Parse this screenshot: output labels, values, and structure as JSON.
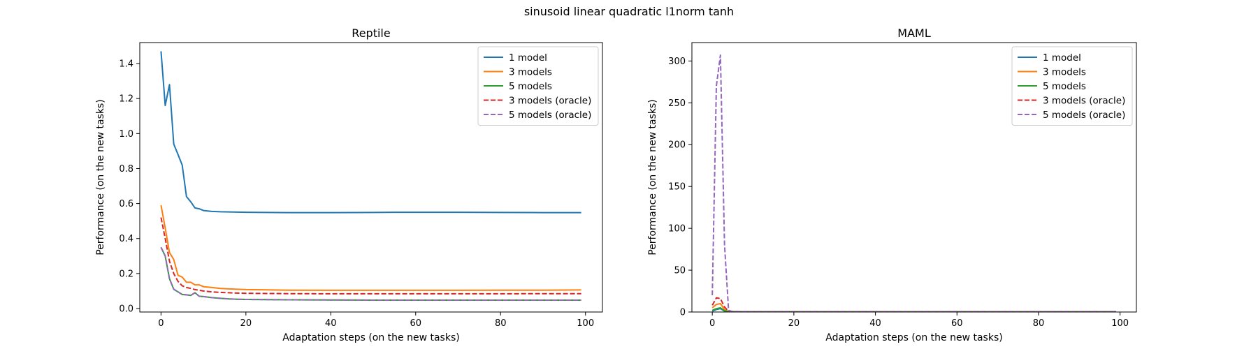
{
  "figure": {
    "suptitle": "sinusoid linear quadratic l1norm tanh"
  },
  "chart_data": [
    {
      "type": "line",
      "title": "Reptile",
      "xlabel": "Adaptation steps (on the new tasks)",
      "ylabel": "Performance (on the new tasks)",
      "xlim": [
        -5,
        104
      ],
      "ylim": [
        -0.02,
        1.52
      ],
      "xticks": [
        0,
        20,
        40,
        60,
        80,
        100
      ],
      "yticks": [
        0.0,
        0.2,
        0.4,
        0.6,
        0.8,
        1.0,
        1.2,
        1.4
      ],
      "ytick_labels": [
        "0.0",
        "0.2",
        "0.4",
        "0.6",
        "0.8",
        "1.0",
        "1.2",
        "1.4"
      ],
      "legend_position": "top-right",
      "series": [
        {
          "name": "1 model",
          "color": "#1f77b4",
          "dash": "solid",
          "points": [
            [
              0,
              1.47
            ],
            [
              1,
              1.16
            ],
            [
              2,
              1.28
            ],
            [
              3,
              0.94
            ],
            [
              4,
              0.88
            ],
            [
              5,
              0.82
            ],
            [
              6,
              0.64
            ],
            [
              7,
              0.61
            ],
            [
              8,
              0.575
            ],
            [
              9,
              0.57
            ],
            [
              10,
              0.56
            ],
            [
              12,
              0.555
            ],
            [
              14,
              0.553
            ],
            [
              16,
              0.552
            ],
            [
              18,
              0.551
            ],
            [
              20,
              0.55
            ],
            [
              25,
              0.549
            ],
            [
              30,
              0.548
            ],
            [
              40,
              0.548
            ],
            [
              50,
              0.549
            ],
            [
              55,
              0.55
            ],
            [
              60,
              0.55
            ],
            [
              70,
              0.55
            ],
            [
              80,
              0.549
            ],
            [
              90,
              0.548
            ],
            [
              99,
              0.548
            ]
          ]
        },
        {
          "name": "3 models",
          "color": "#ff7f0e",
          "dash": "solid",
          "points": [
            [
              0,
              0.59
            ],
            [
              1,
              0.46
            ],
            [
              2,
              0.32
            ],
            [
              3,
              0.28
            ],
            [
              4,
              0.19
            ],
            [
              5,
              0.18
            ],
            [
              6,
              0.15
            ],
            [
              7,
              0.15
            ],
            [
              8,
              0.135
            ],
            [
              9,
              0.135
            ],
            [
              10,
              0.125
            ],
            [
              12,
              0.12
            ],
            [
              14,
              0.115
            ],
            [
              16,
              0.112
            ],
            [
              18,
              0.11
            ],
            [
              20,
              0.108
            ],
            [
              30,
              0.105
            ],
            [
              40,
              0.104
            ],
            [
              50,
              0.104
            ],
            [
              60,
              0.104
            ],
            [
              70,
              0.104
            ],
            [
              80,
              0.105
            ],
            [
              90,
              0.105
            ],
            [
              99,
              0.106
            ]
          ]
        },
        {
          "name": "5 models",
          "color": "#2ca02c",
          "dash": "solid",
          "points": [
            [
              0,
              0.35
            ],
            [
              1,
              0.3
            ],
            [
              2,
              0.17
            ],
            [
              3,
              0.11
            ],
            [
              4,
              0.095
            ],
            [
              5,
              0.08
            ],
            [
              6,
              0.078
            ],
            [
              7,
              0.075
            ],
            [
              8,
              0.09
            ],
            [
              9,
              0.07
            ],
            [
              10,
              0.068
            ],
            [
              12,
              0.062
            ],
            [
              14,
              0.058
            ],
            [
              16,
              0.055
            ],
            [
              18,
              0.053
            ],
            [
              20,
              0.052
            ],
            [
              30,
              0.05
            ],
            [
              40,
              0.049
            ],
            [
              50,
              0.048
            ],
            [
              60,
              0.048
            ],
            [
              70,
              0.048
            ],
            [
              80,
              0.048
            ],
            [
              90,
              0.048
            ],
            [
              99,
              0.048
            ]
          ]
        },
        {
          "name": "3 models (oracle)",
          "color": "#d62728",
          "dash": "dashed",
          "points": [
            [
              0,
              0.52
            ],
            [
              1,
              0.4
            ],
            [
              2,
              0.27
            ],
            [
              3,
              0.2
            ],
            [
              4,
              0.155
            ],
            [
              5,
              0.13
            ],
            [
              6,
              0.12
            ],
            [
              7,
              0.115
            ],
            [
              8,
              0.108
            ],
            [
              10,
              0.1
            ],
            [
              12,
              0.095
            ],
            [
              14,
              0.092
            ],
            [
              16,
              0.09
            ],
            [
              18,
              0.088
            ],
            [
              20,
              0.087
            ],
            [
              30,
              0.085
            ],
            [
              40,
              0.084
            ],
            [
              50,
              0.084
            ],
            [
              60,
              0.084
            ],
            [
              70,
              0.084
            ],
            [
              80,
              0.084
            ],
            [
              90,
              0.085
            ],
            [
              99,
              0.085
            ]
          ]
        },
        {
          "name": "5 models (oracle)",
          "color": "#9467bd",
          "dash": "dashed",
          "points": [
            [
              0,
              0.35
            ],
            [
              1,
              0.3
            ],
            [
              2,
              0.17
            ],
            [
              3,
              0.11
            ],
            [
              4,
              0.095
            ],
            [
              5,
              0.08
            ],
            [
              6,
              0.078
            ],
            [
              7,
              0.075
            ],
            [
              8,
              0.09
            ],
            [
              9,
              0.07
            ],
            [
              10,
              0.068
            ],
            [
              12,
              0.062
            ],
            [
              14,
              0.058
            ],
            [
              16,
              0.055
            ],
            [
              18,
              0.053
            ],
            [
              20,
              0.052
            ],
            [
              30,
              0.05
            ],
            [
              40,
              0.049
            ],
            [
              50,
              0.048
            ],
            [
              60,
              0.048
            ],
            [
              70,
              0.048
            ],
            [
              80,
              0.048
            ],
            [
              90,
              0.048
            ],
            [
              99,
              0.048
            ]
          ]
        }
      ]
    },
    {
      "type": "line",
      "title": "MAML",
      "xlabel": "Adaptation steps (on the new tasks)",
      "ylabel": "Performance (on the new tasks)",
      "xlim": [
        -5,
        104
      ],
      "ylim": [
        0,
        322
      ],
      "xticks": [
        0,
        20,
        40,
        60,
        80,
        100
      ],
      "yticks": [
        0,
        50,
        100,
        150,
        200,
        250,
        300
      ],
      "ytick_labels": [
        "0",
        "50",
        "100",
        "150",
        "200",
        "250",
        "300"
      ],
      "legend_position": "top-right",
      "series": [
        {
          "name": "1 model",
          "color": "#1f77b4",
          "dash": "solid",
          "points": [
            [
              0,
              1
            ],
            [
              1,
              3
            ],
            [
              2,
              4
            ],
            [
              3,
              1
            ],
            [
              4,
              0.5
            ],
            [
              5,
              0.3
            ],
            [
              10,
              0.2
            ],
            [
              20,
              0.2
            ],
            [
              40,
              0.2
            ],
            [
              60,
              0.2
            ],
            [
              80,
              0.2
            ],
            [
              99,
              0.2
            ]
          ]
        },
        {
          "name": "3 models",
          "color": "#ff7f0e",
          "dash": "solid",
          "points": [
            [
              0,
              5
            ],
            [
              1,
              9
            ],
            [
              2,
              10
            ],
            [
              3,
              3
            ],
            [
              4,
              0.5
            ],
            [
              5,
              0.3
            ],
            [
              10,
              0.2
            ],
            [
              20,
              0.2
            ],
            [
              40,
              0.2
            ],
            [
              60,
              0.2
            ],
            [
              80,
              0.2
            ],
            [
              99,
              0.2
            ]
          ]
        },
        {
          "name": "5 models",
          "color": "#2ca02c",
          "dash": "solid",
          "points": [
            [
              0,
              2
            ],
            [
              1,
              4
            ],
            [
              2,
              5
            ],
            [
              3,
              1.5
            ],
            [
              4,
              0.4
            ],
            [
              5,
              0.3
            ],
            [
              10,
              0.2
            ],
            [
              20,
              0.2
            ],
            [
              40,
              0.2
            ],
            [
              60,
              0.2
            ],
            [
              80,
              0.2
            ],
            [
              99,
              0.2
            ]
          ]
        },
        {
          "name": "3 models (oracle)",
          "color": "#d62728",
          "dash": "dashed",
          "points": [
            [
              0,
              8
            ],
            [
              1,
              17
            ],
            [
              2,
              16
            ],
            [
              3,
              6
            ],
            [
              4,
              1
            ],
            [
              5,
              0.5
            ],
            [
              10,
              0.3
            ],
            [
              20,
              0.3
            ],
            [
              40,
              0.3
            ],
            [
              60,
              0.3
            ],
            [
              80,
              0.3
            ],
            [
              99,
              0.3
            ]
          ]
        },
        {
          "name": "5 models (oracle)",
          "color": "#9467bd",
          "dash": "dashed",
          "points": [
            [
              0,
              20
            ],
            [
              1,
              270
            ],
            [
              2,
              307
            ],
            [
              3,
              80
            ],
            [
              4,
              2
            ],
            [
              5,
              0.5
            ],
            [
              10,
              0.3
            ],
            [
              20,
              0.3
            ],
            [
              40,
              0.3
            ],
            [
              60,
              0.3
            ],
            [
              80,
              0.3
            ],
            [
              99,
              0.3
            ]
          ]
        }
      ]
    }
  ]
}
